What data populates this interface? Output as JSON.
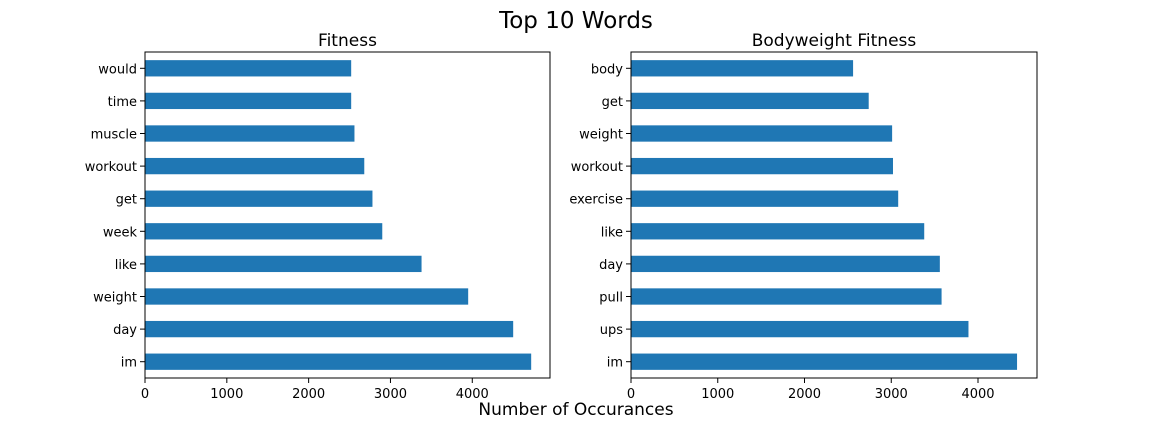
{
  "figure": {
    "title": "Top 10 Words",
    "xlabel": "Number of Occurances"
  },
  "chart_data": [
    {
      "type": "bar",
      "orientation": "horizontal",
      "title": "Fitness",
      "xlabel": "Number of Occurances",
      "ylabel": "",
      "xlim": [
        0,
        4950
      ],
      "xticks": [
        0,
        1000,
        2000,
        3000,
        4000
      ],
      "grid": false,
      "color": "#1f77b4",
      "categories": [
        "would",
        "time",
        "muscle",
        "workout",
        "get",
        "week",
        "like",
        "weight",
        "day",
        "im"
      ],
      "values": [
        2520,
        2520,
        2560,
        2680,
        2780,
        2900,
        3380,
        3950,
        4500,
        4720
      ]
    },
    {
      "type": "bar",
      "orientation": "horizontal",
      "title": "Bodyweight Fitness",
      "xlabel": "Number of Occurances",
      "ylabel": "",
      "xlim": [
        0,
        4680
      ],
      "xticks": [
        0,
        1000,
        2000,
        3000,
        4000
      ],
      "grid": false,
      "color": "#1f77b4",
      "categories": [
        "body",
        "get",
        "weight",
        "workout",
        "exercise",
        "like",
        "day",
        "pull",
        "ups",
        "im"
      ],
      "values": [
        2560,
        2740,
        3010,
        3020,
        3080,
        3380,
        3560,
        3580,
        3890,
        4450
      ]
    }
  ]
}
